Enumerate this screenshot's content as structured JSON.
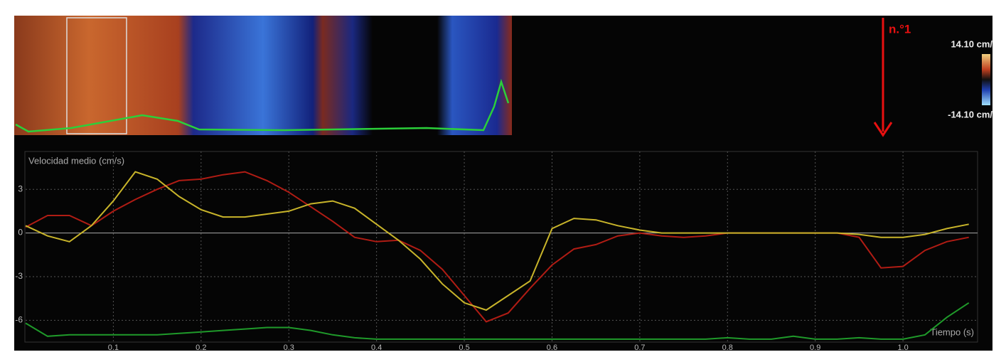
{
  "chart_data": {
    "type": "line",
    "title": "Velocidad medio (cm/s)",
    "x_label": "Tiempo (s)",
    "x": [
      0,
      0.025,
      0.05,
      0.075,
      0.1,
      0.125,
      0.15,
      0.175,
      0.2,
      0.225,
      0.25,
      0.275,
      0.3,
      0.325,
      0.35,
      0.375,
      0.4,
      0.425,
      0.45,
      0.475,
      0.5,
      0.525,
      0.55,
      0.575,
      0.6,
      0.625,
      0.65,
      0.675,
      0.7,
      0.725,
      0.75,
      0.775,
      0.8,
      0.825,
      0.85,
      0.875,
      0.9,
      0.925,
      0.95,
      0.975,
      1.0,
      1.025,
      1.05,
      1.075
    ],
    "series": [
      {
        "color": "#b01c14",
        "values": [
          0.4,
          1.2,
          1.2,
          0.5,
          1.5,
          2.3,
          3.0,
          3.6,
          3.7,
          4.0,
          4.2,
          3.6,
          2.8,
          1.8,
          0.8,
          -0.3,
          -0.6,
          -0.5,
          -1.2,
          -2.5,
          -4.3,
          -6.1,
          -5.5,
          -3.8,
          -2.2,
          -1.1,
          -0.8,
          -0.2,
          0,
          -0.2,
          -0.3,
          -0.2,
          0,
          0,
          0,
          0,
          0,
          0,
          -0.3,
          -2.4,
          -2.3,
          -1.2,
          -0.6,
          -0.3
        ]
      },
      {
        "color": "#c8b42a",
        "values": [
          0.5,
          -0.2,
          -0.6,
          0.5,
          2.2,
          4.2,
          3.7,
          2.5,
          1.6,
          1.1,
          1.1,
          1.3,
          1.5,
          2.0,
          2.2,
          1.7,
          0.6,
          -0.5,
          -1.8,
          -3.5,
          -4.8,
          -5.3,
          -4.3,
          -3.3,
          0.3,
          1.0,
          0.9,
          0.5,
          0.2,
          0,
          0,
          0,
          0,
          0,
          0,
          0,
          0,
          0,
          -0.1,
          -0.3,
          -0.3,
          -0.1,
          0.3,
          0.6
        ]
      },
      {
        "color": "#1f9a2a",
        "values": [
          -6.2,
          -7.1,
          -7.0,
          -7.0,
          -7.0,
          -7.0,
          -7.0,
          -6.9,
          -6.8,
          -6.7,
          -6.6,
          -6.5,
          -6.5,
          -6.7,
          -7.0,
          -7.2,
          -7.3,
          -7.3,
          -7.3,
          -7.3,
          -7.3,
          -7.3,
          -7.3,
          -7.3,
          -7.3,
          -7.3,
          -7.3,
          -7.3,
          -7.3,
          -7.3,
          -7.3,
          -7.3,
          -7.2,
          -7.3,
          -7.3,
          -7.1,
          -7.3,
          -7.3,
          -7.2,
          -7.3,
          -7.3,
          -7.0,
          -5.8,
          -4.8
        ]
      }
    ],
    "xlim": [
      0,
      1.085
    ],
    "xticks": [
      0.1,
      0.2,
      0.3,
      0.4,
      0.5,
      0.6,
      0.7,
      0.8,
      0.9,
      {
        "value": 1,
        "label": "1.0"
      }
    ],
    "ylim": [
      -7.5,
      5.6
    ],
    "yticks": [
      3,
      0,
      -3,
      -6
    ],
    "grid": true
  },
  "overlay": {
    "marker": "n.°1",
    "scale_max": "14.10 cm/",
    "scale_min": "-14.10 cm/"
  }
}
